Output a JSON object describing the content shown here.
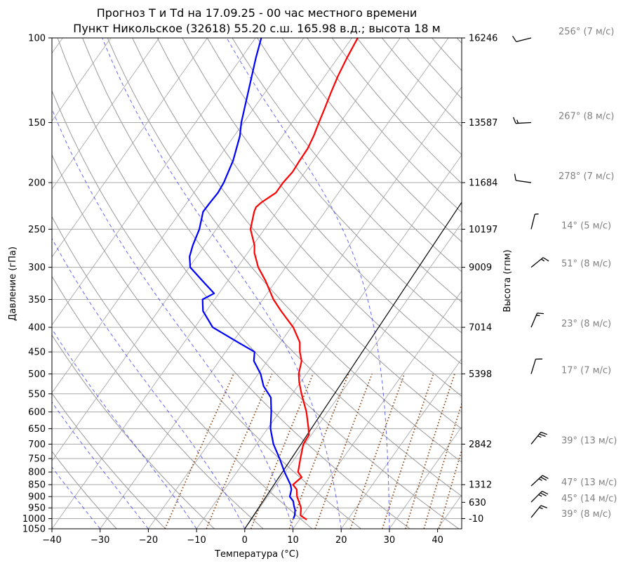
{
  "chart_data": {
    "type": "line",
    "title_line1": "Прогноз T и Td на 17.09.25 - 00 час местного времени",
    "title_line2": "Пункт Никольское (32618) 55.20 с.ш. 165.98 в.д.; высота 18 м",
    "xlabel": "Температура (°C)",
    "ylabel": "Давление (гПа)",
    "ylabel_right": "Высота (гпм)",
    "xlim": [
      -40,
      45
    ],
    "ylim": [
      1050,
      100
    ],
    "y_scale": "log",
    "x_ticks": [
      -40,
      -30,
      -20,
      -10,
      0,
      10,
      20,
      30,
      40
    ],
    "y_ticks": [
      1050,
      1000,
      950,
      900,
      850,
      800,
      750,
      700,
      650,
      600,
      550,
      500,
      450,
      400,
      350,
      300,
      250,
      200,
      150,
      100
    ],
    "height_labels": [
      {
        "p": 100,
        "h": "16246"
      },
      {
        "p": 150,
        "h": "13587"
      },
      {
        "p": 200,
        "h": "11684"
      },
      {
        "p": 250,
        "h": "10197"
      },
      {
        "p": 300,
        "h": "9009"
      },
      {
        "p": 400,
        "h": "7014"
      },
      {
        "p": 500,
        "h": "5398"
      },
      {
        "p": 700,
        "h": "2842"
      },
      {
        "p": 850,
        "h": "1312"
      },
      {
        "p": 925,
        "h": "630"
      },
      {
        "p": 1000,
        "h": "-10"
      }
    ],
    "series": [
      {
        "key": "temperature",
        "color": "#ff0000",
        "points": [
          [
            1005,
            11.5
          ],
          [
            985,
            9.6
          ],
          [
            950,
            8.6
          ],
          [
            925,
            7.4
          ],
          [
            900,
            6.1
          ],
          [
            870,
            5.0
          ],
          [
            850,
            3.5
          ],
          [
            820,
            4.2
          ],
          [
            800,
            2.7
          ],
          [
            750,
            1.2
          ],
          [
            700,
            -0.3
          ],
          [
            670,
            -0.5
          ],
          [
            650,
            -1.5
          ],
          [
            600,
            -4.4
          ],
          [
            550,
            -8.1
          ],
          [
            520,
            -10.3
          ],
          [
            500,
            -11.6
          ],
          [
            470,
            -12.9
          ],
          [
            450,
            -14.6
          ],
          [
            430,
            -16.0
          ],
          [
            400,
            -19.6
          ],
          [
            370,
            -24.5
          ],
          [
            350,
            -27.8
          ],
          [
            320,
            -32.2
          ],
          [
            300,
            -35.7
          ],
          [
            280,
            -38.6
          ],
          [
            270,
            -39.7
          ],
          [
            250,
            -42.9
          ],
          [
            230,
            -44.7
          ],
          [
            225,
            -45.0
          ],
          [
            220,
            -44.6
          ],
          [
            210,
            -43.0
          ],
          [
            200,
            -43.0
          ],
          [
            190,
            -42.6
          ],
          [
            180,
            -42.8
          ],
          [
            170,
            -42.9
          ],
          [
            160,
            -43.5
          ],
          [
            150,
            -44.4
          ],
          [
            140,
            -45.3
          ],
          [
            130,
            -46.3
          ],
          [
            120,
            -47.3
          ],
          [
            110,
            -48.1
          ],
          [
            100,
            -48.8
          ]
        ]
      },
      {
        "key": "dewpoint",
        "color": "#0000ff",
        "points": [
          [
            1000,
            8.6
          ],
          [
            985,
            8.4
          ],
          [
            960,
            7.7
          ],
          [
            940,
            6.8
          ],
          [
            920,
            6.0
          ],
          [
            900,
            4.6
          ],
          [
            870,
            3.9
          ],
          [
            850,
            3.0
          ],
          [
            800,
            -0.1
          ],
          [
            750,
            -3.1
          ],
          [
            700,
            -6.5
          ],
          [
            650,
            -9.4
          ],
          [
            600,
            -11.7
          ],
          [
            560,
            -13.9
          ],
          [
            530,
            -17.1
          ],
          [
            500,
            -19.5
          ],
          [
            470,
            -22.8
          ],
          [
            450,
            -24.0
          ],
          [
            430,
            -28.8
          ],
          [
            400,
            -36.3
          ],
          [
            370,
            -40.7
          ],
          [
            350,
            -42.5
          ],
          [
            340,
            -41.0
          ],
          [
            320,
            -45.3
          ],
          [
            300,
            -49.8
          ],
          [
            285,
            -51.5
          ],
          [
            270,
            -52.5
          ],
          [
            250,
            -53.5
          ],
          [
            230,
            -55.3
          ],
          [
            220,
            -55.2
          ],
          [
            210,
            -55.0
          ],
          [
            200,
            -55.3
          ],
          [
            180,
            -56.6
          ],
          [
            160,
            -58.8
          ],
          [
            150,
            -60.5
          ],
          [
            130,
            -63.5
          ],
          [
            110,
            -67.0
          ],
          [
            100,
            -68.8
          ]
        ]
      }
    ],
    "winds": [
      {
        "p": 100,
        "dir": 256,
        "speed": 7,
        "label": "256° (7 м/с)"
      },
      {
        "p": 150,
        "dir": 267,
        "speed": 8,
        "label": "267° (8 м/с)"
      },
      {
        "p": 200,
        "dir": 278,
        "speed": 7,
        "label": "278° (7 м/с)"
      },
      {
        "p": 250,
        "dir": 14,
        "speed": 5,
        "label": "14° (5 м/с)"
      },
      {
        "p": 300,
        "dir": 51,
        "speed": 8,
        "label": "51° (8 м/с)"
      },
      {
        "p": 400,
        "dir": 23,
        "speed": 8,
        "label": "23° (8 м/с)"
      },
      {
        "p": 500,
        "dir": 17,
        "speed": 7,
        "label": "17° (7 м/с)"
      },
      {
        "p": 700,
        "dir": 39,
        "speed": 13,
        "label": "39° (13 м/с)"
      },
      {
        "p": 850,
        "dir": 47,
        "speed": 13,
        "label": "47° (13 м/с)"
      },
      {
        "p": 925,
        "dir": 45,
        "speed": 14,
        "label": "45° (14 м/с)"
      },
      {
        "p": 1000,
        "dir": 39,
        "speed": 8,
        "label": "39° (8 м/с)"
      }
    ],
    "background_colors": {
      "isotherm_grid": "#aaaaaa",
      "dry_adiabat": "#999999",
      "moist_adiabat": "#0000ff",
      "mixing_ratio": "#8b4513",
      "lcl_line": "#000000"
    },
    "grid": true
  }
}
